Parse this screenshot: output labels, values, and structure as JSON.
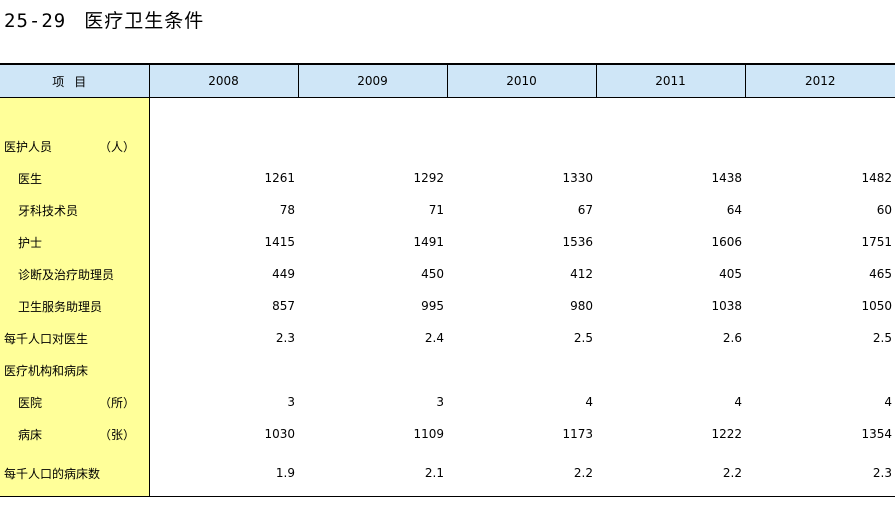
{
  "title": {
    "code": "25-29",
    "text": "医疗卫生条件"
  },
  "table": {
    "item_header": "项目",
    "years": [
      "2008",
      "2009",
      "2010",
      "2011",
      "2012"
    ],
    "rows": [
      {
        "label": "医护人员",
        "unit": "（人）",
        "indent": false,
        "values": [
          "",
          "",
          "",
          "",
          ""
        ]
      },
      {
        "label": "医生",
        "unit": "",
        "indent": true,
        "values": [
          "1261",
          "1292",
          "1330",
          "1438",
          "1482"
        ]
      },
      {
        "label": "牙科技术员",
        "unit": "",
        "indent": true,
        "values": [
          "78",
          "71",
          "67",
          "64",
          "60"
        ]
      },
      {
        "label": "护士",
        "unit": "",
        "indent": true,
        "values": [
          "1415",
          "1491",
          "1536",
          "1606",
          "1751"
        ]
      },
      {
        "label": "诊断及治疗助理员",
        "unit": "",
        "indent": true,
        "values": [
          "449",
          "450",
          "412",
          "405",
          "465"
        ]
      },
      {
        "label": "卫生服务助理员",
        "unit": "",
        "indent": true,
        "values": [
          "857",
          "995",
          "980",
          "1038",
          "1050"
        ]
      },
      {
        "label": "每千人口对医生",
        "unit": "",
        "indent": false,
        "values": [
          "2.3",
          "2.4",
          "2.5",
          "2.6",
          "2.5"
        ]
      },
      {
        "label": "医疗机构和病床",
        "unit": "",
        "indent": false,
        "values": [
          "",
          "",
          "",
          "",
          ""
        ]
      },
      {
        "label": "医院",
        "unit": "（所）",
        "indent": true,
        "values": [
          "3",
          "3",
          "4",
          "4",
          "4"
        ]
      },
      {
        "label": "病床",
        "unit": "（张）",
        "indent": true,
        "values": [
          "1030",
          "1109",
          "1173",
          "1222",
          "1354"
        ]
      },
      {
        "label": "每千人口的病床数",
        "unit": "",
        "indent": false,
        "values": [
          "1.9",
          "2.1",
          "2.2",
          "2.2",
          "2.3"
        ]
      }
    ]
  }
}
